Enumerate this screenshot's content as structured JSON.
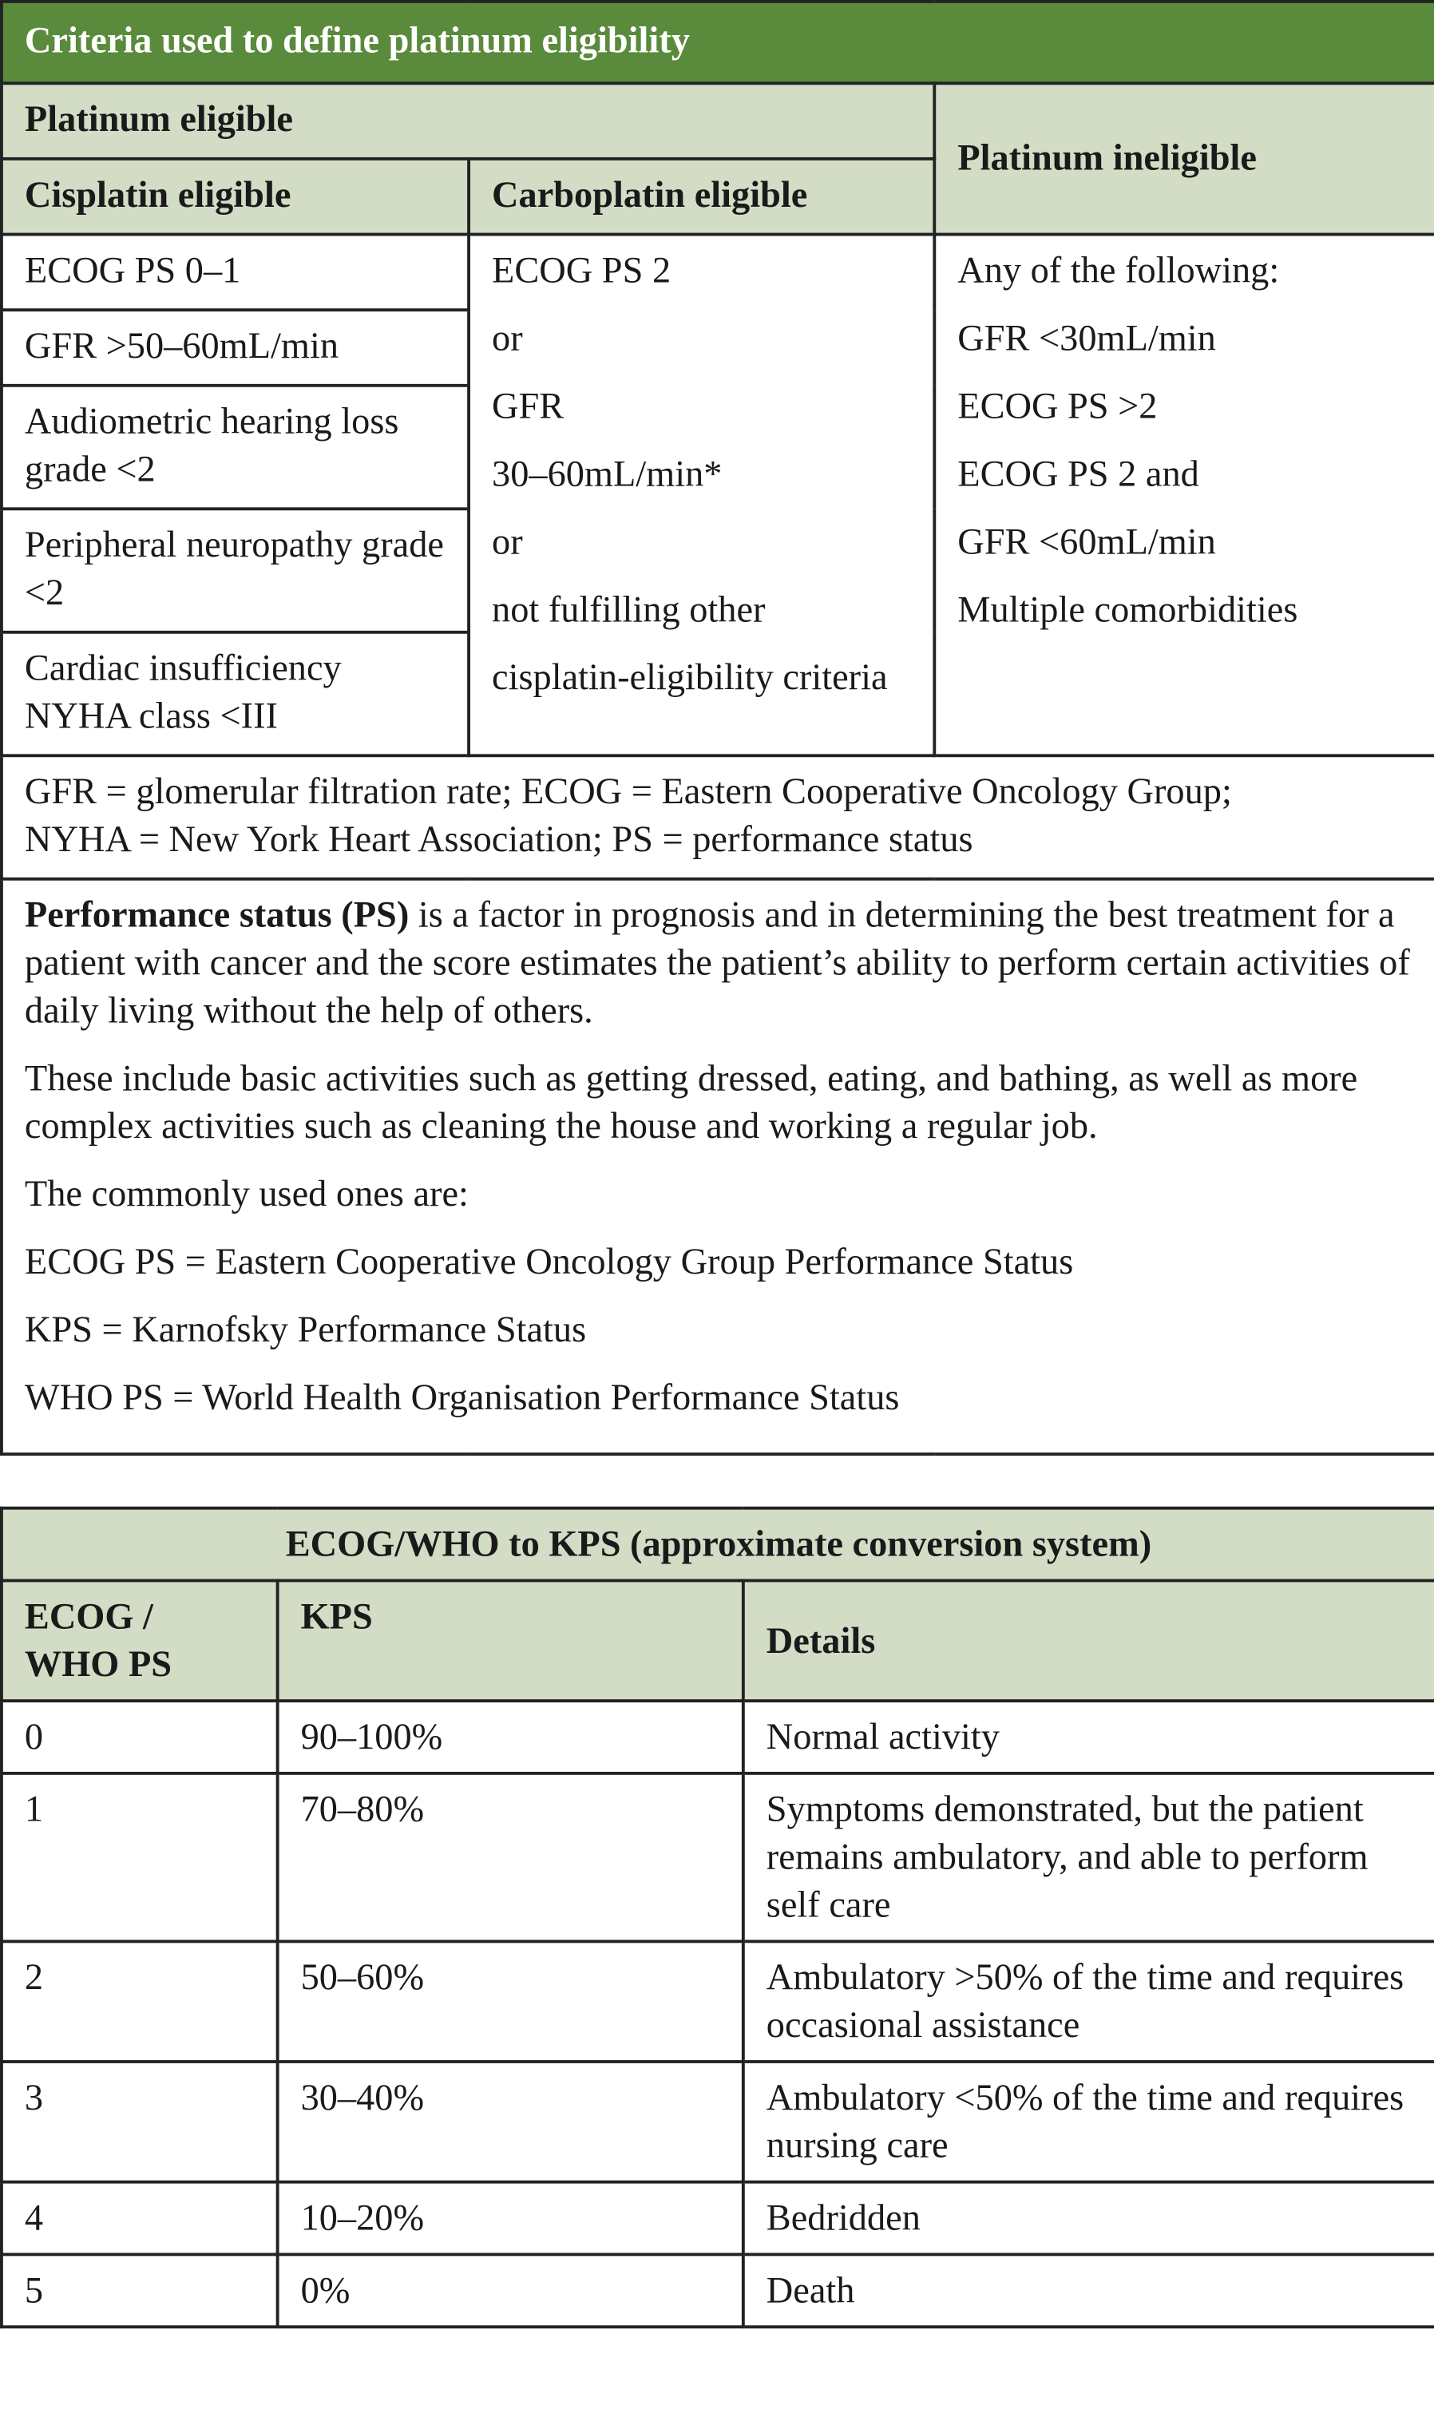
{
  "table1": {
    "title": "Criteria used to define platinum eligibility",
    "platinum_eligible": "Platinum eligible",
    "platinum_ineligible": "Platinum ineligible",
    "cisplatin_header": "Cisplatin eligible",
    "carboplatin_header": "Carboplatin eligible",
    "cisplatin": [
      "ECOG PS 0–1",
      "GFR >50–60mL/min",
      "Audiometric hearing loss grade <2",
      "Peripheral neuropathy grade <2",
      "Cardiac insufficiency NYHA class <III"
    ],
    "carboplatin": [
      "ECOG PS 2",
      "or",
      "GFR",
      "30–60mL/min*",
      "or",
      "not fulfilling other",
      "cisplatin-eligibility criteria"
    ],
    "ineligible": [
      "Any of the following:",
      "GFR <30mL/min",
      "ECOG PS >2",
      "ECOG PS 2 and",
      "GFR <60mL/min",
      "Multiple comorbidities"
    ],
    "abbreviations": "GFR = glomerular filtration rate; ECOG = Eastern Cooperative Oncology Group; NYHA = New York Heart Association; PS = performance status",
    "ps_term": "Performance status (PS)",
    "ps_text": " is a factor in prognosis and in determining the best treatment for a patient with cancer and the score estimates the patient’s ability to perform certain activities of daily living without the help of others.",
    "paragraphs": [
      "These include basic activities such as getting dressed, eating, and bathing, as well as more complex activities such as cleaning the house and working a regular job.",
      "The commonly used ones are:",
      "ECOG PS = Eastern Cooperative Oncology Group Performance Status",
      "KPS = Karnofsky Performance Status",
      "WHO PS = World Health Organisation Performance Status"
    ]
  },
  "table2": {
    "title": "ECOG/WHO to KPS (approximate conversion system)",
    "headers": [
      "ECOG / WHO PS",
      "KPS",
      "Details"
    ],
    "rows": [
      [
        "0",
        "90–100%",
        "Normal activity"
      ],
      [
        "1",
        "70–80%",
        "Symptoms demonstrated, but the patient remains ambulatory, and able to perform self care"
      ],
      [
        "2",
        "50–60%",
        "Ambulatory >50% of the time and requires occasional assistance"
      ],
      [
        "3",
        "30–40%",
        "Ambulatory <50% of the time and requires nursing care"
      ],
      [
        "4",
        "10–20%",
        "Bedridden"
      ],
      [
        "5",
        "0%",
        "Death"
      ]
    ]
  }
}
